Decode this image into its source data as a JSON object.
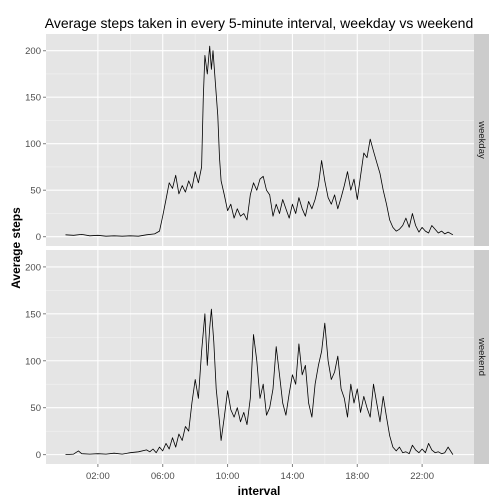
{
  "chart_data": {
    "type": "line",
    "title": "Average steps taken in every 5-minute interval, weekday vs weekend",
    "xlabel": "interval",
    "ylabel": "Average steps",
    "x_unit": "hours of day",
    "xlim": [
      -1.2,
      25.2
    ],
    "ylim": [
      -10,
      218
    ],
    "x_ticks": [
      {
        "value": 2,
        "label": "02:00"
      },
      {
        "value": 6,
        "label": "06:00"
      },
      {
        "value": 10,
        "label": "10:00"
      },
      {
        "value": 14,
        "label": "14:00"
      },
      {
        "value": 18,
        "label": "18:00"
      },
      {
        "value": 22,
        "label": "22:00"
      }
    ],
    "y_ticks": [
      0,
      50,
      100,
      150,
      200
    ],
    "grid": true,
    "panel_background": "#e5e5e5",
    "strip_background": "#cccccc",
    "line_color": "#000000",
    "panels": [
      {
        "name": "weekday",
        "points": [
          [
            0,
            2
          ],
          [
            0.5,
            1.5
          ],
          [
            1,
            2.5
          ],
          [
            1.5,
            1
          ],
          [
            2,
            1.5
          ],
          [
            2.5,
            0.5
          ],
          [
            3,
            1
          ],
          [
            3.5,
            0.5
          ],
          [
            4,
            1
          ],
          [
            4.5,
            0.5
          ],
          [
            5,
            2
          ],
          [
            5.5,
            3
          ],
          [
            5.8,
            6
          ],
          [
            6,
            22
          ],
          [
            6.2,
            40
          ],
          [
            6.4,
            58
          ],
          [
            6.6,
            52
          ],
          [
            6.8,
            66
          ],
          [
            7,
            46
          ],
          [
            7.2,
            55
          ],
          [
            7.4,
            48
          ],
          [
            7.6,
            60
          ],
          [
            7.8,
            52
          ],
          [
            8,
            70
          ],
          [
            8.2,
            58
          ],
          [
            8.4,
            75
          ],
          [
            8.5,
            150
          ],
          [
            8.6,
            195
          ],
          [
            8.75,
            175
          ],
          [
            8.9,
            205
          ],
          [
            9,
            180
          ],
          [
            9.1,
            200
          ],
          [
            9.25,
            165
          ],
          [
            9.4,
            130
          ],
          [
            9.5,
            85
          ],
          [
            9.6,
            60
          ],
          [
            9.8,
            45
          ],
          [
            10,
            28
          ],
          [
            10.2,
            35
          ],
          [
            10.4,
            20
          ],
          [
            10.6,
            30
          ],
          [
            10.8,
            22
          ],
          [
            11,
            25
          ],
          [
            11.2,
            18
          ],
          [
            11.4,
            45
          ],
          [
            11.6,
            58
          ],
          [
            11.8,
            50
          ],
          [
            12,
            62
          ],
          [
            12.2,
            65
          ],
          [
            12.4,
            50
          ],
          [
            12.6,
            45
          ],
          [
            12.8,
            22
          ],
          [
            13,
            35
          ],
          [
            13.2,
            25
          ],
          [
            13.4,
            40
          ],
          [
            13.6,
            30
          ],
          [
            13.8,
            20
          ],
          [
            14,
            35
          ],
          [
            14.2,
            25
          ],
          [
            14.4,
            42
          ],
          [
            14.6,
            30
          ],
          [
            14.8,
            22
          ],
          [
            15,
            38
          ],
          [
            15.2,
            30
          ],
          [
            15.4,
            40
          ],
          [
            15.6,
            55
          ],
          [
            15.8,
            82
          ],
          [
            16,
            60
          ],
          [
            16.2,
            42
          ],
          [
            16.4,
            35
          ],
          [
            16.6,
            45
          ],
          [
            16.8,
            30
          ],
          [
            17,
            42
          ],
          [
            17.2,
            55
          ],
          [
            17.4,
            70
          ],
          [
            17.6,
            50
          ],
          [
            17.8,
            62
          ],
          [
            18,
            40
          ],
          [
            18.2,
            65
          ],
          [
            18.4,
            90
          ],
          [
            18.6,
            85
          ],
          [
            18.8,
            105
          ],
          [
            19,
            92
          ],
          [
            19.2,
            80
          ],
          [
            19.4,
            68
          ],
          [
            19.6,
            50
          ],
          [
            19.8,
            35
          ],
          [
            20,
            18
          ],
          [
            20.2,
            10
          ],
          [
            20.4,
            6
          ],
          [
            20.6,
            8
          ],
          [
            20.8,
            12
          ],
          [
            21,
            20
          ],
          [
            21.2,
            10
          ],
          [
            21.4,
            25
          ],
          [
            21.6,
            12
          ],
          [
            21.8,
            5
          ],
          [
            22,
            10
          ],
          [
            22.2,
            6
          ],
          [
            22.4,
            4
          ],
          [
            22.6,
            12
          ],
          [
            22.8,
            8
          ],
          [
            23,
            4
          ],
          [
            23.2,
            6
          ],
          [
            23.4,
            3
          ],
          [
            23.6,
            5
          ],
          [
            23.9,
            2
          ]
        ]
      },
      {
        "name": "weekend",
        "points": [
          [
            0,
            0
          ],
          [
            0.5,
            0.5
          ],
          [
            0.8,
            4
          ],
          [
            1,
            1
          ],
          [
            1.5,
            0.5
          ],
          [
            2,
            1
          ],
          [
            2.5,
            0.5
          ],
          [
            3,
            1.5
          ],
          [
            3.5,
            0.5
          ],
          [
            4,
            2
          ],
          [
            4.5,
            3
          ],
          [
            5,
            5
          ],
          [
            5.2,
            3
          ],
          [
            5.4,
            6
          ],
          [
            5.6,
            2
          ],
          [
            5.8,
            8
          ],
          [
            6,
            4
          ],
          [
            6.2,
            12
          ],
          [
            6.4,
            6
          ],
          [
            6.6,
            18
          ],
          [
            6.8,
            8
          ],
          [
            7,
            22
          ],
          [
            7.2,
            15
          ],
          [
            7.4,
            30
          ],
          [
            7.6,
            25
          ],
          [
            7.8,
            55
          ],
          [
            8,
            80
          ],
          [
            8.2,
            60
          ],
          [
            8.4,
            110
          ],
          [
            8.6,
            150
          ],
          [
            8.75,
            95
          ],
          [
            8.9,
            135
          ],
          [
            9,
            155
          ],
          [
            9.15,
            120
          ],
          [
            9.3,
            70
          ],
          [
            9.5,
            35
          ],
          [
            9.6,
            15
          ],
          [
            9.8,
            40
          ],
          [
            10,
            68
          ],
          [
            10.2,
            48
          ],
          [
            10.4,
            40
          ],
          [
            10.6,
            50
          ],
          [
            10.8,
            35
          ],
          [
            11,
            45
          ],
          [
            11.2,
            32
          ],
          [
            11.4,
            60
          ],
          [
            11.6,
            128
          ],
          [
            11.8,
            100
          ],
          [
            12,
            60
          ],
          [
            12.2,
            75
          ],
          [
            12.4,
            42
          ],
          [
            12.6,
            50
          ],
          [
            12.8,
            70
          ],
          [
            13,
            115
          ],
          [
            13.2,
            85
          ],
          [
            13.4,
            55
          ],
          [
            13.6,
            42
          ],
          [
            13.8,
            65
          ],
          [
            14,
            85
          ],
          [
            14.2,
            75
          ],
          [
            14.4,
            118
          ],
          [
            14.6,
            85
          ],
          [
            14.8,
            95
          ],
          [
            15,
            55
          ],
          [
            15.2,
            40
          ],
          [
            15.4,
            75
          ],
          [
            15.6,
            95
          ],
          [
            15.8,
            110
          ],
          [
            16,
            140
          ],
          [
            16.2,
            100
          ],
          [
            16.4,
            80
          ],
          [
            16.6,
            88
          ],
          [
            16.8,
            105
          ],
          [
            17,
            70
          ],
          [
            17.2,
            60
          ],
          [
            17.4,
            40
          ],
          [
            17.6,
            75
          ],
          [
            17.8,
            55
          ],
          [
            18,
            70
          ],
          [
            18.2,
            45
          ],
          [
            18.4,
            62
          ],
          [
            18.6,
            50
          ],
          [
            18.8,
            40
          ],
          [
            19,
            75
          ],
          [
            19.2,
            55
          ],
          [
            19.4,
            35
          ],
          [
            19.6,
            62
          ],
          [
            19.8,
            40
          ],
          [
            20,
            20
          ],
          [
            20.2,
            8
          ],
          [
            20.4,
            4
          ],
          [
            20.6,
            8
          ],
          [
            20.8,
            2
          ],
          [
            21,
            3
          ],
          [
            21.2,
            1
          ],
          [
            21.4,
            10
          ],
          [
            21.6,
            5
          ],
          [
            21.8,
            2
          ],
          [
            22,
            6
          ],
          [
            22.2,
            2
          ],
          [
            22.4,
            12
          ],
          [
            22.6,
            5
          ],
          [
            22.8,
            2
          ],
          [
            23,
            3
          ],
          [
            23.2,
            1
          ],
          [
            23.4,
            2
          ],
          [
            23.6,
            8
          ],
          [
            23.9,
            0
          ]
        ]
      }
    ]
  }
}
